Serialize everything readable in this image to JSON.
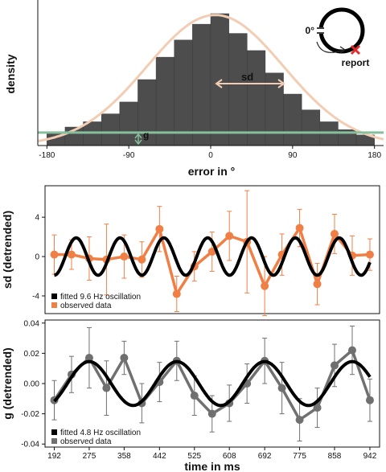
{
  "chart_data": [
    {
      "type": "bar",
      "xlabel": "error in °",
      "ylabel": "density",
      "xlim": [
        -190,
        190
      ],
      "xticks": [
        "-180",
        "-90",
        "0",
        "90",
        "180"
      ],
      "bin_width": 20,
      "bin_centers": [
        -170,
        -150,
        -130,
        -110,
        -90,
        -70,
        -50,
        -30,
        -10,
        10,
        30,
        50,
        70,
        90,
        110,
        130,
        150,
        170
      ],
      "values": [
        0.09,
        0.14,
        0.18,
        0.24,
        0.33,
        0.5,
        0.67,
        0.8,
        0.92,
        1.0,
        0.85,
        0.72,
        0.55,
        0.39,
        0.27,
        0.18,
        0.12,
        0.08
      ],
      "baseline_g": 0.08,
      "colors": {
        "bars": "#4d4d4d",
        "gaussian": "#f2cdb4",
        "baseline": "#86bf9c"
      },
      "annotations": {
        "sd": "sd",
        "g": "g",
        "zero": "0°",
        "report": "report"
      }
    },
    {
      "type": "line",
      "xlabel": "",
      "ylabel": "sd (detrended)",
      "ylim": [
        -5.8,
        7.2
      ],
      "yticks": [
        "4",
        "0",
        "-4"
      ],
      "x": [
        192,
        233,
        275,
        316,
        358,
        400,
        442,
        483,
        525,
        567,
        608,
        650,
        692,
        733,
        775,
        817,
        858,
        900,
        942
      ],
      "series": [
        {
          "name": "observed data",
          "color": "#f07f46",
          "values": [
            0.2,
            0.2,
            -0.2,
            -0.3,
            0.0,
            -0.3,
            2.8,
            -3.8,
            -1.0,
            0.5,
            2.1,
            1.5,
            -3.0,
            0.2,
            2.9,
            -2.8,
            2.3,
            0.1,
            0.2
          ],
          "err": [
            2.0,
            1.5,
            2.2,
            3.6,
            2.2,
            1.8,
            2.3,
            1.8,
            1.5,
            2.0,
            2.5,
            5.2,
            3.0,
            2.1,
            1.9,
            2.1,
            2.0,
            2.0,
            1.6
          ]
        },
        {
          "name": "fitted 9.6 Hz oscillation",
          "color": "#000000",
          "model": {
            "freq_hz": 9.6,
            "amp": 1.9,
            "phase_ms": 218
          }
        }
      ]
    },
    {
      "type": "line",
      "xlabel": "time in ms",
      "ylabel": "g (detrended)",
      "ylim": [
        -0.042,
        0.042
      ],
      "yticks": [
        "0.04",
        "0.02",
        "0.00",
        "-0.02",
        "-0.04"
      ],
      "xticks": [
        "192",
        "275",
        "358",
        "442",
        "525",
        "608",
        "692",
        "775",
        "858",
        "942"
      ],
      "x": [
        192,
        233,
        275,
        316,
        358,
        400,
        442,
        483,
        525,
        567,
        608,
        650,
        692,
        733,
        775,
        817,
        858,
        900,
        942
      ],
      "series": [
        {
          "name": "observed data",
          "color": "#707070",
          "values": [
            -0.011,
            0.006,
            0.017,
            -0.003,
            0.017,
            -0.013,
            0.001,
            0.015,
            -0.008,
            -0.02,
            -0.013,
            0.0,
            0.015,
            -0.003,
            -0.024,
            -0.016,
            0.012,
            0.022,
            -0.011
          ],
          "err": [
            0.013,
            0.012,
            0.02,
            0.018,
            0.011,
            0.013,
            0.013,
            0.013,
            0.013,
            0.012,
            0.012,
            0.013,
            0.015,
            0.017,
            0.014,
            0.013,
            0.014,
            0.016,
            0.014
          ]
        },
        {
          "name": "fitted 4.8 Hz oscillation",
          "color": "#000000",
          "model": {
            "freq_hz": 4.8,
            "amp": 0.0145,
            "phase_ms": 223
          }
        }
      ]
    }
  ]
}
